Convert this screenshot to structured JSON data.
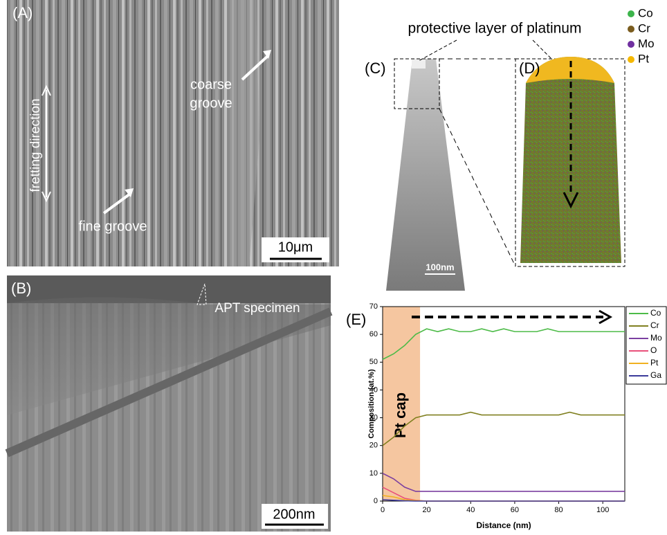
{
  "panels": {
    "A": {
      "label": "(A)",
      "fretting": "fretting direction",
      "coarse_groove": [
        "coarse",
        "groove"
      ],
      "fine_groove": "fine groove",
      "scale_bar": "10μm"
    },
    "B": {
      "label": "(B)",
      "specimen": "APT specimen",
      "scale_bar": "200nm"
    },
    "C": {
      "label": "(C)",
      "scale_bar": "100nm",
      "protective": "protective layer of platinum"
    },
    "D": {
      "label": "(D)",
      "atom_legend": [
        {
          "name": "Co",
          "color": "#3cb44b"
        },
        {
          "name": "Cr",
          "color": "#7a5c1e"
        },
        {
          "name": "Mo",
          "color": "#7030a0"
        },
        {
          "name": "Pt",
          "color": "#f5b800"
        }
      ]
    }
  },
  "chart_data": {
    "type": "line",
    "panel_label": "(E)",
    "x_label": "Distance (nm)",
    "y_label": "Composition (at.%)",
    "x": [
      0,
      5,
      10,
      15,
      20,
      25,
      30,
      35,
      40,
      45,
      50,
      55,
      60,
      65,
      70,
      75,
      80,
      85,
      90,
      95,
      100,
      105,
      110
    ],
    "series": [
      {
        "name": "Co",
        "color": "#4cbb47",
        "values": [
          51,
          53,
          56,
          60,
          62,
          61,
          62,
          61,
          61,
          62,
          61,
          62,
          61,
          61,
          61,
          62,
          61,
          61,
          61,
          61,
          61,
          61,
          61
        ]
      },
      {
        "name": "Cr",
        "color": "#808020",
        "values": [
          20,
          23,
          27,
          30,
          31,
          31,
          31,
          31,
          32,
          31,
          31,
          31,
          31,
          31,
          31,
          31,
          31,
          32,
          31,
          31,
          31,
          31,
          31
        ]
      },
      {
        "name": "Mo",
        "color": "#7b3fa0",
        "values": [
          10,
          8,
          5,
          3.5,
          3.5,
          3.5,
          3.5,
          3.5,
          3.5,
          3.5,
          3.5,
          3.5,
          3.5,
          3.5,
          3.5,
          3.5,
          3.5,
          3.5,
          3.5,
          3.5,
          3.5,
          3.5,
          3.5
        ]
      },
      {
        "name": "O",
        "color": "#e8507a",
        "values": [
          5,
          3,
          1,
          0.3,
          0,
          0,
          0,
          0,
          0,
          0,
          0,
          0,
          0,
          0,
          0,
          0,
          0,
          0,
          0,
          0,
          0,
          0,
          0
        ]
      },
      {
        "name": "Pt",
        "color": "#f0b020",
        "values": [
          2,
          1.5,
          0.5,
          0.2,
          0,
          0,
          0,
          0,
          0,
          0,
          0,
          0,
          0,
          0,
          0,
          0,
          0,
          0,
          0,
          0,
          0,
          0,
          0
        ]
      },
      {
        "name": "Ga",
        "color": "#3a3a9a",
        "values": [
          0.5,
          0.3,
          0.1,
          0,
          0,
          0,
          0,
          0,
          0,
          0,
          0,
          0,
          0,
          0,
          0,
          0,
          0,
          0,
          0,
          0,
          0,
          0,
          0
        ]
      }
    ],
    "highlight": {
      "label": "Pt cap",
      "xrange": [
        0,
        17
      ],
      "color": "#f5c6a0"
    },
    "xlim": [
      0,
      110
    ],
    "xticks": [
      0,
      20,
      40,
      60,
      80,
      100
    ],
    "ylim": [
      0,
      70
    ],
    "yticks": [
      0,
      10,
      20,
      30,
      40,
      50,
      60,
      70
    ]
  }
}
